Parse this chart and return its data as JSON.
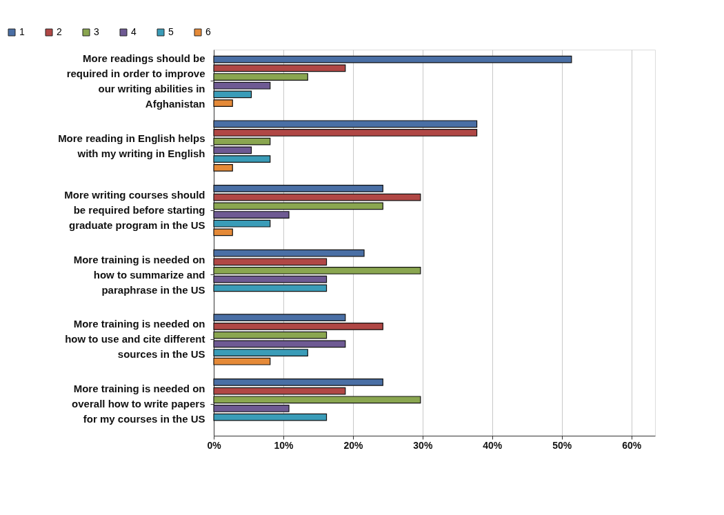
{
  "chart_data": {
    "type": "bar",
    "orientation": "horizontal",
    "categories": [
      "More readings should be required in order to improve our writing abilities in Afghanistan",
      "More reading in English helps with my writing in English",
      "More writing courses should be required before starting graduate program in the US",
      "More training is needed on how to summarize and paraphrase in the US",
      "More training is needed on how to use and cite different sources in the US",
      "More training is needed on overall how to write papers for my courses in the US"
    ],
    "series": [
      {
        "name": "1",
        "color": "#4a6fa5",
        "values": [
          51.4,
          37.8,
          24.3,
          21.6,
          18.9,
          24.3
        ]
      },
      {
        "name": "2",
        "color": "#b04745",
        "values": [
          18.9,
          37.8,
          29.7,
          16.2,
          24.3,
          18.9
        ]
      },
      {
        "name": "3",
        "color": "#8aa650",
        "values": [
          13.5,
          8.1,
          24.3,
          29.7,
          16.2,
          29.7
        ]
      },
      {
        "name": "4",
        "color": "#6e5a93",
        "values": [
          8.1,
          5.4,
          10.8,
          16.2,
          18.9,
          10.8
        ]
      },
      {
        "name": "5",
        "color": "#3a9cb8",
        "values": [
          5.4,
          8.1,
          8.1,
          16.2,
          13.5,
          16.2
        ]
      },
      {
        "name": "6",
        "color": "#e58a38",
        "values": [
          2.7,
          2.7,
          2.7,
          null,
          8.1,
          null
        ]
      }
    ],
    "xlim": [
      0,
      63.4
    ],
    "xticks": [
      {
        "value": 0,
        "label": "0%"
      },
      {
        "value": 10,
        "label": "10%"
      },
      {
        "value": 20,
        "label": "20%"
      },
      {
        "value": 30,
        "label": "30%"
      },
      {
        "value": 40,
        "label": "40%"
      },
      {
        "value": 50,
        "label": "50%"
      },
      {
        "value": 60,
        "label": "60%"
      }
    ],
    "grid": "x",
    "legend": "top left"
  }
}
